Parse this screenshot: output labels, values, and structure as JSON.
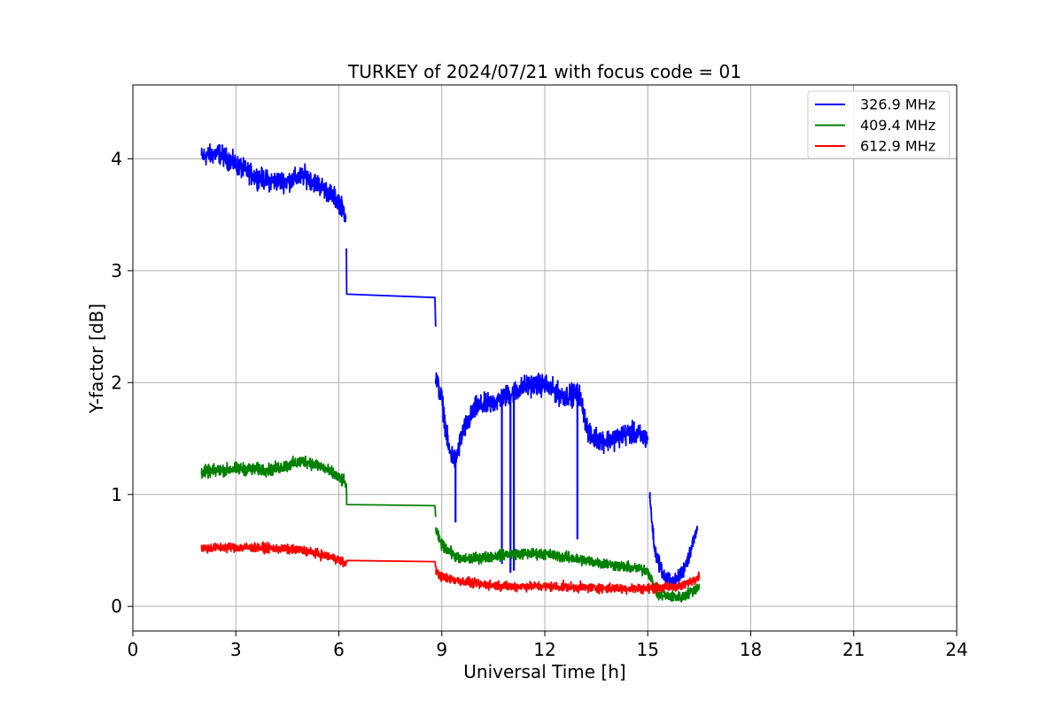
{
  "chart_data": {
    "type": "line",
    "title": "TURKEY of 2024/07/21 with focus code = 01",
    "xlabel": "Universal Time [h]",
    "ylabel": "Y-factor [dB]",
    "xlim": [
      0,
      24
    ],
    "ylim": [
      -0.22,
      4.66
    ],
    "xticks": [
      0,
      3,
      6,
      9,
      12,
      15,
      18,
      21,
      24
    ],
    "yticks": [
      0,
      1,
      2,
      3,
      4
    ],
    "grid": true,
    "legend_position": "top-right",
    "series": [
      {
        "name": "326.9 MHz",
        "color": "#0000ff",
        "segments": [
          {
            "x": [
              2.0,
              2.5,
              3.0,
              3.5,
              4.0,
              4.5,
              5.0,
              5.5,
              6.0,
              6.2
            ],
            "y": [
              4.02,
              4.05,
              3.95,
              3.85,
              3.8,
              3.8,
              3.85,
              3.75,
              3.62,
              3.5
            ],
            "noise": 0.13
          },
          {
            "x": [
              6.22,
              6.23,
              8.8,
              8.82
            ],
            "y": [
              3.2,
              2.79,
              2.76,
              2.5
            ],
            "noise": 0
          },
          {
            "x": [
              8.82,
              9.0,
              9.2,
              9.4,
              9.6,
              10.0,
              10.5,
              11.0,
              11.5,
              12.0,
              12.5,
              13.0,
              13.3,
              13.8,
              14.5,
              15.0
            ],
            "y": [
              2.05,
              1.85,
              1.4,
              1.3,
              1.55,
              1.78,
              1.82,
              1.9,
              1.98,
              1.98,
              1.88,
              1.9,
              1.52,
              1.48,
              1.55,
              1.5
            ],
            "noise": 0.14
          },
          {
            "x": [
              15.05,
              15.2,
              15.5,
              15.8,
              16.0,
              16.2,
              16.4,
              16.45
            ],
            "y": [
              1.0,
              0.5,
              0.25,
              0.22,
              0.3,
              0.45,
              0.65,
              0.7
            ],
            "noise": 0.1
          }
        ],
        "dips": [
          {
            "x": 9.4,
            "y": 0.75
          },
          {
            "x": 10.75,
            "y": 0.38
          },
          {
            "x": 11.0,
            "y": 0.3
          },
          {
            "x": 11.1,
            "y": 0.32
          },
          {
            "x": 12.95,
            "y": 0.6
          }
        ]
      },
      {
        "name": "409.4 MHz",
        "color": "#008000",
        "segments": [
          {
            "x": [
              2.0,
              3.0,
              4.0,
              5.0,
              5.5,
              6.0,
              6.2
            ],
            "y": [
              1.2,
              1.23,
              1.22,
              1.3,
              1.25,
              1.15,
              1.1
            ],
            "noise": 0.08
          },
          {
            "x": [
              6.22,
              6.23,
              8.8,
              8.82
            ],
            "y": [
              1.1,
              0.91,
              0.9,
              0.8
            ],
            "noise": 0
          },
          {
            "x": [
              8.82,
              9.0,
              9.5,
              10.0,
              11.0,
              12.0,
              13.0,
              14.0,
              15.0,
              15.3,
              16.0,
              16.5
            ],
            "y": [
              0.68,
              0.55,
              0.42,
              0.43,
              0.47,
              0.47,
              0.42,
              0.37,
              0.32,
              0.1,
              0.08,
              0.18
            ],
            "noise": 0.07
          }
        ],
        "dips": []
      },
      {
        "name": "612.9 MHz",
        "color": "#ff0000",
        "segments": [
          {
            "x": [
              2.0,
              3.0,
              4.0,
              5.0,
              6.0,
              6.2
            ],
            "y": [
              0.52,
              0.53,
              0.52,
              0.5,
              0.42,
              0.38
            ],
            "noise": 0.06
          },
          {
            "x": [
              6.22,
              6.23,
              8.8,
              8.82
            ],
            "y": [
              0.38,
              0.41,
              0.4,
              0.35
            ],
            "noise": 0
          },
          {
            "x": [
              8.82,
              9.0,
              10.0,
              11.0,
              12.0,
              13.0,
              14.0,
              15.0,
              16.0,
              16.5
            ],
            "y": [
              0.32,
              0.26,
              0.2,
              0.18,
              0.18,
              0.17,
              0.16,
              0.16,
              0.18,
              0.27
            ],
            "noise": 0.06
          }
        ],
        "dips": []
      }
    ]
  }
}
